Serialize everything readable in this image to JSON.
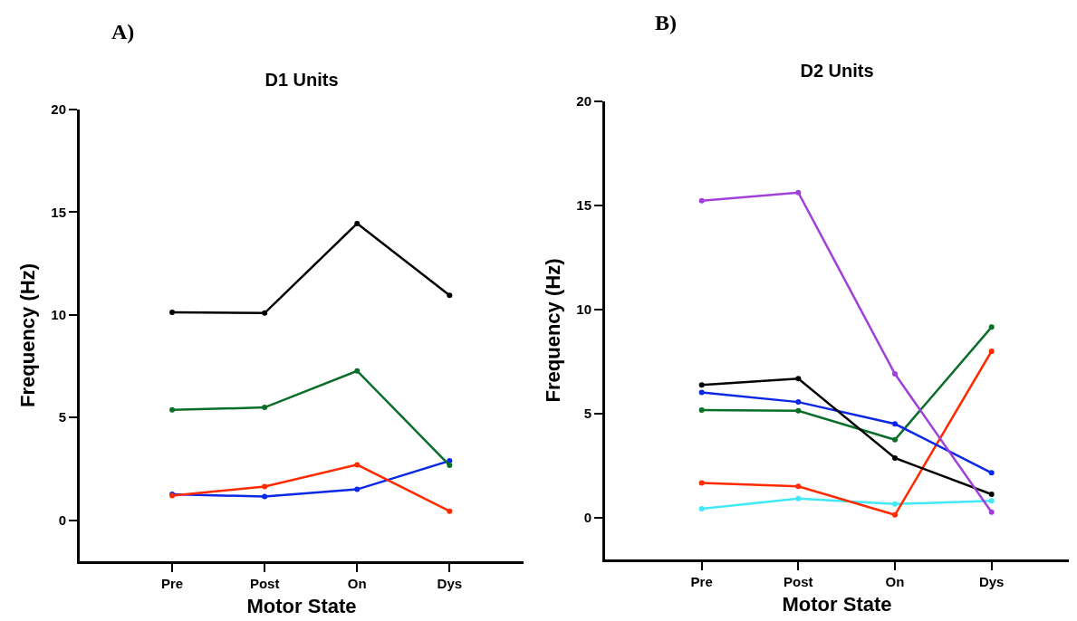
{
  "chart_data": [
    {
      "type": "line",
      "title": "D1 Units",
      "xlabel": "Motor State",
      "ylabel": "Frequency (Hz)",
      "annotations": [
        "A)"
      ],
      "categories": [
        "Pre",
        "Post",
        "On",
        "Dys"
      ],
      "ylim": [
        -2,
        20
      ],
      "yticks": [
        0,
        5,
        10,
        15,
        20
      ],
      "marker": "circle",
      "line_style": "solid",
      "series": [
        {
          "color": "#000000",
          "values": [
            10.12,
            10.09,
            14.45,
            10.95
          ]
        },
        {
          "color": "#0a6e28",
          "values": [
            5.37,
            5.49,
            7.27,
            2.67
          ]
        },
        {
          "color": "#ff2a00",
          "values": [
            1.2,
            1.64,
            2.7,
            0.44
          ]
        },
        {
          "color": "#0a28e6",
          "values": [
            1.26,
            1.15,
            1.5,
            2.89
          ]
        }
      ]
    },
    {
      "type": "line",
      "title": "D2 Units",
      "xlabel": "Motor State",
      "ylabel": "Frequency (Hz)",
      "annotations": [
        "B)"
      ],
      "categories": [
        "Pre",
        "Post",
        "On",
        "Dys"
      ],
      "ylim": [
        -2,
        20
      ],
      "yticks": [
        0,
        5,
        10,
        15,
        20
      ],
      "marker": "circle",
      "line_style": "solid",
      "series": [
        {
          "color": "#a040d8",
          "values": [
            15.23,
            15.62,
            6.91,
            0.27
          ]
        },
        {
          "color": "#000000",
          "values": [
            6.38,
            6.68,
            2.87,
            1.13
          ]
        },
        {
          "color": "#0a28e6",
          "values": [
            6.02,
            5.56,
            4.51,
            2.16
          ]
        },
        {
          "color": "#0a6e28",
          "values": [
            5.17,
            5.14,
            3.75,
            9.16
          ]
        },
        {
          "color": "#ff2a00",
          "values": [
            1.67,
            1.51,
            0.14,
            8.0
          ]
        },
        {
          "color": "#40e8f8",
          "values": [
            0.43,
            0.92,
            0.66,
            0.81
          ]
        }
      ]
    }
  ]
}
